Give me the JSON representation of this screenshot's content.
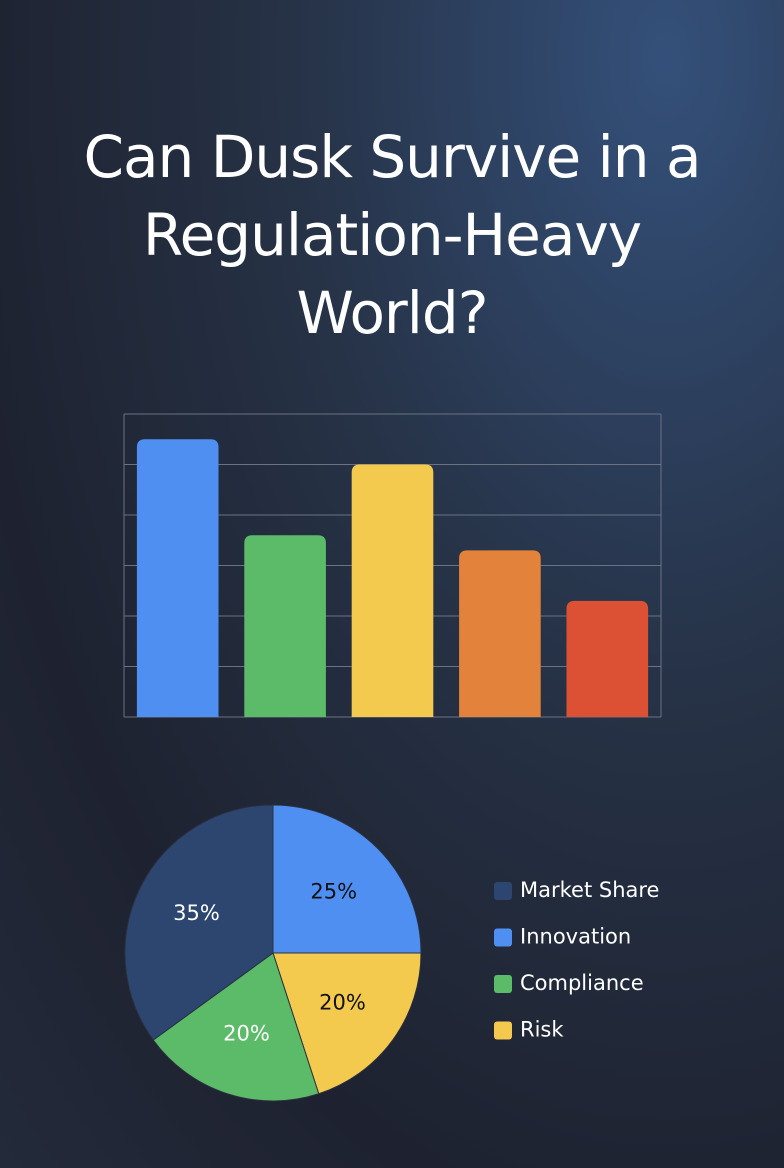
{
  "title": "Can Dusk Survive in a Regulation-Heavy World?",
  "chart_data": [
    {
      "type": "bar",
      "categories": [
        null,
        null,
        null,
        null,
        null
      ],
      "values": [
        5.5,
        3.6,
        5,
        3.3,
        2.3
      ],
      "colors": [
        "#4f8ff2",
        "#5cbb68",
        "#f4ca4e",
        "#e3823a",
        "#dc5134"
      ],
      "ylim": [
        0,
        6
      ],
      "yticks": [
        0,
        1,
        2,
        3,
        4,
        5,
        6
      ],
      "grid": true
    },
    {
      "type": "pie",
      "legend": "right",
      "categories": [
        "Innovation",
        "Risk",
        "Compliance",
        "Market Share"
      ],
      "values": [
        25,
        20,
        20,
        35
      ],
      "value_labels": [
        "25%",
        "20%",
        "20%",
        "35%"
      ],
      "colors": [
        "#4f8ff2",
        "#f4ca4e",
        "#5cbb68",
        "#2c4670"
      ]
    }
  ]
}
